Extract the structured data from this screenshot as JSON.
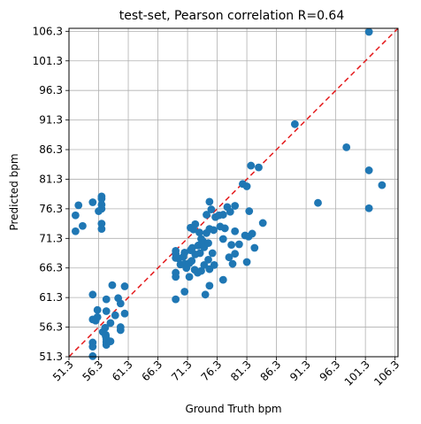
{
  "chart_data": {
    "type": "scatter",
    "title": "test-set, Pearson correlation R=0.64",
    "xlabel": "Ground Truth bpm",
    "ylabel": "Predicted bpm",
    "xlim": [
      51.3,
      106.8
    ],
    "ylim": [
      51.3,
      106.8
    ],
    "xticks": [
      "51.3",
      "56.3",
      "61.3",
      "66.3",
      "71.3",
      "76.3",
      "81.3",
      "86.3",
      "91.3",
      "96.3",
      "101.3",
      "106.3"
    ],
    "yticks": [
      "51.3",
      "56.3",
      "61.3",
      "66.3",
      "71.3",
      "76.3",
      "81.3",
      "86.3",
      "91.3",
      "96.3",
      "101.3",
      "106.3"
    ],
    "grid": true,
    "reference_line": {
      "style": "dashed",
      "color": "#e41a1c",
      "slope": 1,
      "intercept": 0
    },
    "point_color": "#1f77b4",
    "points": [
      [
        52.4,
        72.5
      ],
      [
        52.4,
        75.2
      ],
      [
        52.9,
        76.9
      ],
      [
        53.6,
        73.4
      ],
      [
        55.3,
        51.4
      ],
      [
        55.3,
        53.7
      ],
      [
        55.3,
        53.0
      ],
      [
        55.3,
        57.6
      ],
      [
        55.3,
        61.8
      ],
      [
        55.3,
        77.4
      ],
      [
        55.8,
        57.4
      ],
      [
        56.1,
        58.0
      ],
      [
        56.1,
        59.2
      ],
      [
        56.3,
        75.9
      ],
      [
        56.8,
        76.3
      ],
      [
        56.8,
        78.0
      ],
      [
        56.8,
        78.4
      ],
      [
        56.8,
        77.0
      ],
      [
        56.8,
        72.9
      ],
      [
        56.8,
        73.8
      ],
      [
        57.0,
        55.5
      ],
      [
        57.5,
        55.0
      ],
      [
        57.5,
        54.8
      ],
      [
        57.6,
        53.8
      ],
      [
        57.6,
        53.3
      ],
      [
        57.6,
        54.3
      ],
      [
        57.6,
        61.0
      ],
      [
        57.6,
        59.0
      ],
      [
        57.4,
        56.2
      ],
      [
        58.3,
        53.9
      ],
      [
        58.3,
        57.0
      ],
      [
        58.6,
        63.4
      ],
      [
        59.1,
        58.3
      ],
      [
        59.6,
        61.2
      ],
      [
        60.0,
        55.8
      ],
      [
        60.0,
        60.3
      ],
      [
        60.7,
        58.6
      ],
      [
        60.7,
        63.2
      ],
      [
        60.0,
        56.3
      ],
      [
        69.3,
        61.0
      ],
      [
        69.3,
        64.8
      ],
      [
        69.3,
        65.5
      ],
      [
        69.3,
        68.0
      ],
      [
        69.3,
        68.7
      ],
      [
        69.3,
        69.2
      ],
      [
        69.8,
        67.9
      ],
      [
        70.1,
        66.9
      ],
      [
        70.6,
        68.2
      ],
      [
        70.8,
        62.3
      ],
      [
        70.8,
        67.0
      ],
      [
        70.8,
        68.9
      ],
      [
        71.1,
        66.3
      ],
      [
        71.6,
        64.8
      ],
      [
        71.6,
        67.1
      ],
      [
        71.8,
        69.3
      ],
      [
        71.8,
        73.1
      ],
      [
        72.0,
        67.5
      ],
      [
        72.1,
        69.7
      ],
      [
        72.3,
        72.8
      ],
      [
        72.5,
        66.0
      ],
      [
        72.6,
        68.6
      ],
      [
        72.6,
        73.7
      ],
      [
        73.0,
        65.5
      ],
      [
        73.1,
        70.1
      ],
      [
        73.3,
        72.3
      ],
      [
        73.4,
        68.8
      ],
      [
        73.6,
        71.2
      ],
      [
        73.6,
        65.8
      ],
      [
        73.9,
        70.8
      ],
      [
        74.1,
        66.8
      ],
      [
        74.1,
        69.8
      ],
      [
        74.3,
        61.8
      ],
      [
        74.5,
        72.2
      ],
      [
        74.5,
        75.3
      ],
      [
        74.8,
        67.7
      ],
      [
        74.8,
        70.5
      ],
      [
        75.0,
        63.3
      ],
      [
        75.0,
        66.1
      ],
      [
        75.0,
        72.9
      ],
      [
        75.0,
        77.5
      ],
      [
        75.3,
        76.2
      ],
      [
        75.5,
        68.8
      ],
      [
        75.7,
        72.7
      ],
      [
        75.8,
        66.8
      ],
      [
        76.0,
        74.9
      ],
      [
        76.6,
        75.2
      ],
      [
        76.8,
        73.3
      ],
      [
        77.3,
        75.3
      ],
      [
        77.3,
        64.3
      ],
      [
        77.3,
        71.2
      ],
      [
        77.6,
        73.0
      ],
      [
        78.0,
        76.6
      ],
      [
        78.3,
        68.1
      ],
      [
        78.5,
        75.8
      ],
      [
        78.7,
        70.2
      ],
      [
        78.9,
        67.0
      ],
      [
        79.3,
        72.5
      ],
      [
        79.3,
        76.8
      ],
      [
        79.3,
        68.7
      ],
      [
        80.0,
        70.3
      ],
      [
        80.6,
        80.5
      ],
      [
        81.0,
        71.8
      ],
      [
        81.3,
        80.1
      ],
      [
        81.3,
        67.3
      ],
      [
        81.6,
        71.6
      ],
      [
        81.7,
        75.9
      ],
      [
        82.0,
        83.6
      ],
      [
        82.2,
        72.1
      ],
      [
        82.6,
        69.7
      ],
      [
        83.3,
        83.3
      ],
      [
        84.0,
        73.9
      ],
      [
        89.4,
        90.6
      ],
      [
        93.3,
        77.3
      ],
      [
        98.1,
        86.7
      ],
      [
        101.9,
        106.2
      ],
      [
        101.9,
        82.8
      ],
      [
        101.9,
        76.4
      ],
      [
        104.1,
        80.3
      ]
    ]
  }
}
